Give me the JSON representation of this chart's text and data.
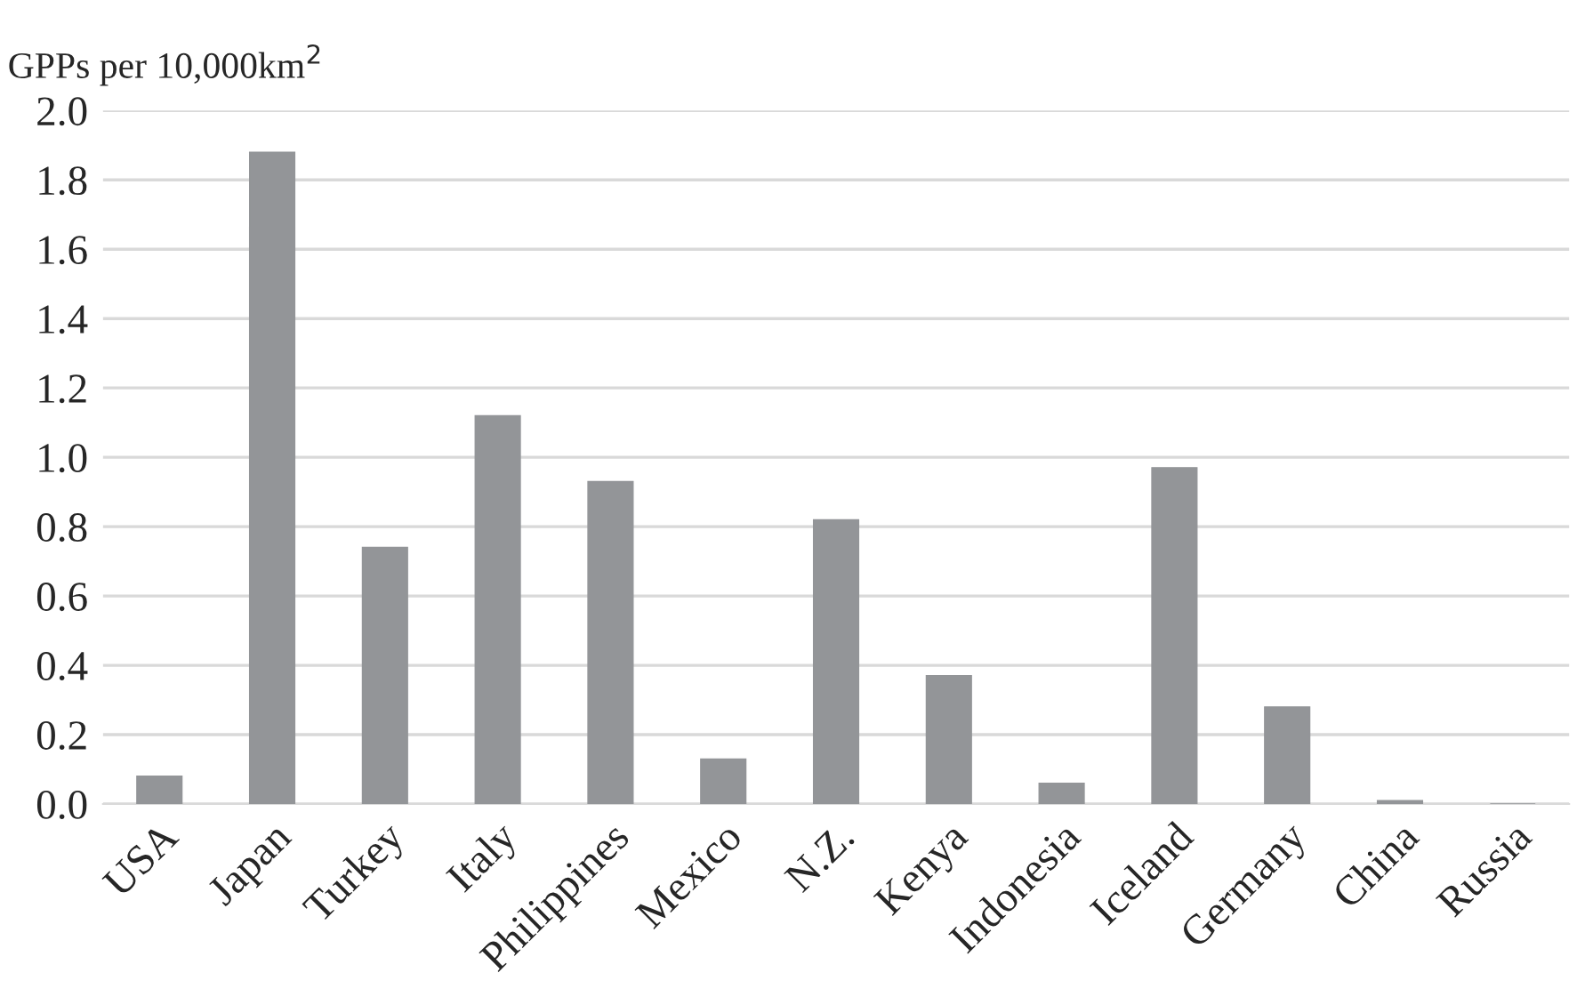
{
  "chart_data": {
    "type": "bar",
    "ylabel": "GPPs per 10,000km$^{2}$",
    "categories": [
      "USA",
      "Japan",
      "Turkey",
      "Italy",
      "Philippines",
      "Mexico",
      "N.Z.",
      "Kenya",
      "Indonesia",
      "Iceland",
      "Germany",
      "China",
      "Russia"
    ],
    "values": [
      0.08,
      1.88,
      0.74,
      1.12,
      0.93,
      0.13,
      0.82,
      0.37,
      0.06,
      0.97,
      0.28,
      0.01,
      0.0
    ],
    "color": "#939598",
    "ylim": [
      0,
      2.0
    ],
    "yticks": [
      {
        "value": 0,
        "label": "0.0"
      },
      {
        "value": 0.2,
        "label": "0.2"
      },
      {
        "value": 0.4,
        "label": "0.4"
      },
      {
        "value": 0.6,
        "label": "0.6"
      },
      {
        "value": 0.8,
        "label": "0.8"
      },
      {
        "value": 1.0,
        "label": "1.0"
      },
      {
        "value": 1.2,
        "label": "1.2"
      },
      {
        "value": 1.4,
        "label": "1.4"
      },
      {
        "value": 1.6,
        "label": "1.6"
      },
      {
        "value": 1.8,
        "label": "1.8"
      },
      {
        "value": 2.0,
        "label": "2.0"
      }
    ],
    "grid": "y",
    "legend": false
  }
}
